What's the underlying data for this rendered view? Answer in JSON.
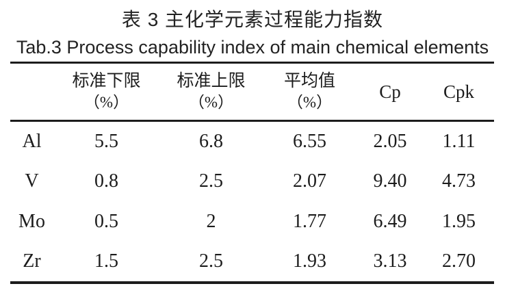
{
  "caption": {
    "zh": "表 3 主化学元素过程能力指数",
    "en": "Tab.3 Process capability index of main chemical elements"
  },
  "table": {
    "columns": [
      {
        "label": "",
        "unit": ""
      },
      {
        "label": "标准下限",
        "unit": "（%）"
      },
      {
        "label": "标准上限",
        "unit": "（%）"
      },
      {
        "label": "平均值",
        "unit": "（%）"
      },
      {
        "label": "Cp",
        "unit": ""
      },
      {
        "label": "Cpk",
        "unit": ""
      }
    ],
    "rows": [
      {
        "element": "Al",
        "values": [
          "5.5",
          "6.8",
          "6.55",
          "2.05",
          "1.11"
        ]
      },
      {
        "element": "V",
        "values": [
          "0.8",
          "2.5",
          "2.07",
          "9.40",
          "4.73"
        ]
      },
      {
        "element": "Mo",
        "values": [
          "0.5",
          "2",
          "1.77",
          "6.49",
          "1.95"
        ]
      },
      {
        "element": "Zr",
        "values": [
          "1.5",
          "2.5",
          "1.93",
          "3.13",
          "2.70"
        ]
      }
    ]
  },
  "colors": {
    "text": "#1c1c1c",
    "rule": "#1c1c1c",
    "background": "#ffffff"
  }
}
